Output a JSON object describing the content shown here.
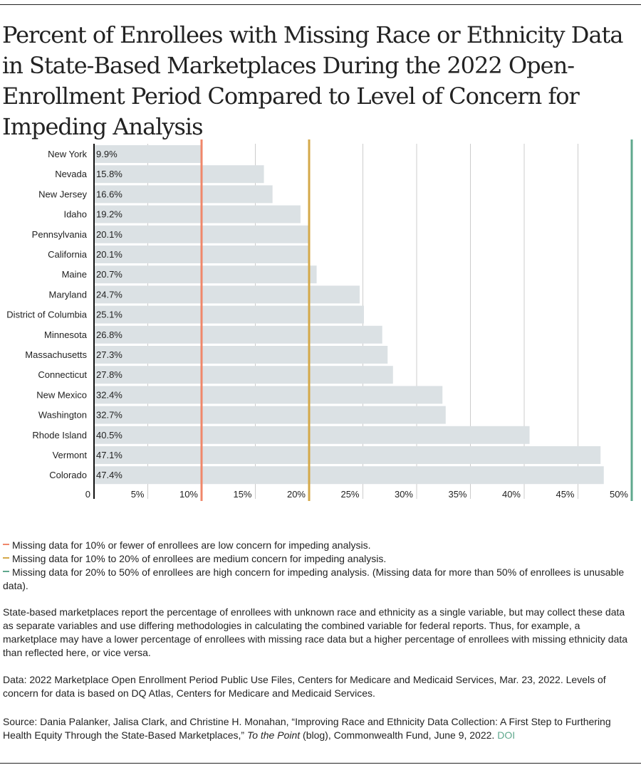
{
  "title": "Percent of Enrollees with Missing Race or Ethnicity Data in State-Based Marketplaces During the 2022 Open-Enrollment Period Compared to Level of Concern for Impeding Analysis",
  "chart_data": {
    "type": "bar",
    "orientation": "horizontal",
    "title": "Percent of Enrollees with Missing Race or Ethnicity Data in State-Based Marketplaces During the 2022 Open-Enrollment Period Compared to Level of Concern for Impeding Analysis",
    "xlabel": "",
    "ylabel": "",
    "xlim": [
      0,
      50
    ],
    "grid": true,
    "categories": [
      "New York",
      "Nevada",
      "New Jersey",
      "Idaho",
      "Pennsylvania",
      "California",
      "Maine",
      "Maryland",
      "District of Columbia",
      "Minnesota",
      "Massachusetts",
      "Connecticut",
      "New Mexico",
      "Washington",
      "Rhode Island",
      "Vermont",
      "Colorado"
    ],
    "values": [
      9.9,
      15.8,
      16.6,
      19.2,
      20.1,
      20.1,
      20.7,
      24.7,
      25.1,
      26.8,
      27.3,
      27.8,
      32.4,
      32.7,
      40.5,
      47.1,
      47.4
    ],
    "value_labels": [
      "9.9%",
      "15.8%",
      "16.6%",
      "19.2%",
      "20.1%",
      "20.1%",
      "20.7%",
      "24.7%",
      "25.1%",
      "26.8%",
      "27.3%",
      "27.8%",
      "32.4%",
      "32.7%",
      "40.5%",
      "47.1%",
      "47.4%"
    ],
    "x_ticks": [
      0,
      5,
      10,
      15,
      20,
      25,
      30,
      35,
      40,
      45,
      50
    ],
    "x_tick_labels": [
      "0",
      "5%",
      "10%",
      "15%",
      "20%",
      "25%",
      "30%",
      "35%",
      "40%",
      "45%",
      "50%"
    ],
    "reference_lines": [
      {
        "value": 10,
        "label": "low concern threshold",
        "color": "#f0876a"
      },
      {
        "value": 20,
        "label": "medium concern threshold",
        "color": "#d4a94a"
      },
      {
        "value": 50,
        "label": "high concern threshold",
        "color": "#5fa88d"
      }
    ],
    "bar_color": "#dbe1e4"
  },
  "legend": [
    {
      "color": "#f0876a",
      "text": "Missing data for 10% or fewer of enrollees are low concern for impeding analysis."
    },
    {
      "color": "#d4a94a",
      "text": "Missing data for 10% to 20% of enrollees are medium concern for impeding analysis."
    },
    {
      "color": "#5fa88d",
      "text": "Missing data for 20% to 50% of enrollees are high concern for impeding analysis. (Missing data for more than 50% of enrollees is unusable data)."
    }
  ],
  "notes": {
    "methodology": "State-based marketplaces report the percentage of enrollees with unknown race and ethnicity as a single variable, but may collect these data as separate variables and use differing methodologies in calculating the combined variable for federal reports. Thus, for example, a marketplace may have a lower percentage of enrollees with missing race data but a higher percentage of enrollees with missing ethnicity data than reflected here, or vice versa.",
    "data": "Data: 2022 Marketplace Open Enrollment Period Public Use Files, Centers for Medicare and Medicaid Services, Mar. 23, 2022. Levels of concern for data is based on DQ Atlas, Centers for Medicare and Medicaid Services.",
    "source_before": "Source: Dania Palanker, Jalisa Clark, and Christine H. Monahan, “Improving Race and Ethnicity Data Collection: A First Step to Furthering Health Equity Through the State-Based Marketplaces,” ",
    "source_italic": "To the Point",
    "source_after": " (blog), Commonwealth Fund, June 9, 2022. ",
    "doi_label": "DOI"
  }
}
